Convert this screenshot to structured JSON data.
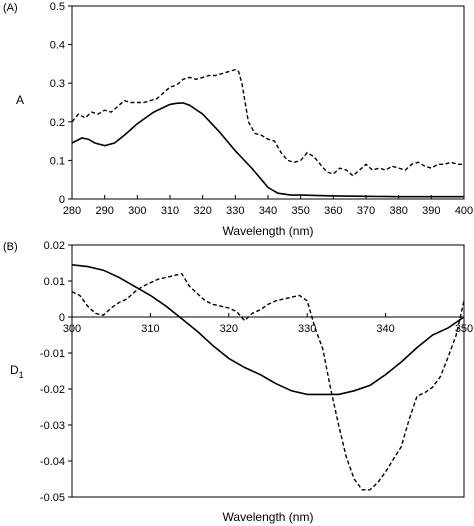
{
  "chart_data": [
    {
      "type": "line",
      "panel_label": "(A)",
      "xlabel": "Wavelength (nm)",
      "ylabel": "A",
      "xlim": [
        280,
        400
      ],
      "ylim": [
        0,
        0.5
      ],
      "xticks": [
        280,
        290,
        300,
        310,
        320,
        330,
        340,
        350,
        360,
        370,
        380,
        390,
        400
      ],
      "yticks": [
        0,
        0.1,
        0.2,
        0.3,
        0.4,
        0.5
      ],
      "ytick_labels": [
        "0",
        "0.1",
        "0.2",
        "0.3",
        "0.4",
        "0.5"
      ],
      "grid": false,
      "series": [
        {
          "style": "solid",
          "x": [
            280,
            283,
            285,
            287,
            290,
            293,
            296,
            300,
            305,
            310,
            312,
            314,
            316,
            320,
            325,
            330,
            335,
            338,
            340,
            343,
            347,
            350,
            360,
            370,
            380,
            390,
            400
          ],
          "y": [
            0.145,
            0.158,
            0.155,
            0.145,
            0.138,
            0.145,
            0.165,
            0.195,
            0.225,
            0.245,
            0.248,
            0.249,
            0.243,
            0.22,
            0.175,
            0.125,
            0.08,
            0.05,
            0.03,
            0.015,
            0.01,
            0.01,
            0.008,
            0.007,
            0.006,
            0.006,
            0.006
          ]
        },
        {
          "style": "dashed",
          "x": [
            280,
            282,
            284,
            286,
            288,
            290,
            292,
            294,
            296,
            298,
            300,
            302,
            304,
            306,
            308,
            310,
            312,
            314,
            316,
            318,
            320,
            322,
            324,
            326,
            328,
            330,
            331,
            332,
            334,
            336,
            338,
            340,
            342,
            344,
            346,
            348,
            350,
            352,
            354,
            356,
            358,
            360,
            362,
            364,
            366,
            368,
            370,
            372,
            374,
            376,
            378,
            380,
            382,
            384,
            386,
            388,
            390,
            392,
            394,
            396,
            398,
            400
          ],
          "y": [
            0.2,
            0.22,
            0.21,
            0.225,
            0.22,
            0.23,
            0.225,
            0.24,
            0.255,
            0.25,
            0.25,
            0.25,
            0.255,
            0.26,
            0.275,
            0.29,
            0.295,
            0.31,
            0.315,
            0.31,
            0.315,
            0.32,
            0.32,
            0.325,
            0.33,
            0.335,
            0.33,
            0.3,
            0.2,
            0.17,
            0.165,
            0.155,
            0.15,
            0.12,
            0.1,
            0.095,
            0.1,
            0.12,
            0.11,
            0.09,
            0.07,
            0.065,
            0.08,
            0.075,
            0.06,
            0.075,
            0.09,
            0.075,
            0.08,
            0.075,
            0.085,
            0.08,
            0.075,
            0.09,
            0.095,
            0.085,
            0.08,
            0.09,
            0.09,
            0.095,
            0.09,
            0.09
          ]
        }
      ]
    },
    {
      "type": "line",
      "panel_label": "(B)",
      "xlabel": "Wavelength (nm)",
      "ylabel_main": "D",
      "ylabel_sub": "1",
      "xlim": [
        300,
        350
      ],
      "ylim": [
        -0.05,
        0.02
      ],
      "xticks": [
        300,
        310,
        320,
        330,
        340,
        350
      ],
      "xtick_labels": [
        "300",
        "310",
        "320",
        "330",
        "340",
        "350"
      ],
      "yticks": [
        -0.05,
        -0.04,
        -0.03,
        -0.02,
        -0.01,
        0,
        0.01,
        0.02
      ],
      "ytick_labels": [
        "-0.05",
        "-0.04",
        "-0.03",
        "-0.02",
        "-0.01",
        "0",
        "0.01",
        "0.02"
      ],
      "grid": false,
      "series": [
        {
          "style": "solid",
          "x": [
            300,
            302,
            304,
            306,
            308,
            310,
            312,
            314,
            316,
            318,
            320,
            322,
            324,
            326,
            328,
            330,
            332,
            334,
            336,
            338,
            340,
            342,
            344,
            346,
            348,
            350
          ],
          "y": [
            0.0145,
            0.014,
            0.013,
            0.011,
            0.0085,
            0.006,
            0.003,
            -0.0005,
            -0.004,
            -0.008,
            -0.0115,
            -0.014,
            -0.016,
            -0.0185,
            -0.0205,
            -0.0215,
            -0.0215,
            -0.0215,
            -0.0205,
            -0.019,
            -0.016,
            -0.0125,
            -0.0085,
            -0.005,
            -0.003,
            0.0
          ]
        },
        {
          "style": "dashed",
          "x": [
            300,
            301,
            302,
            303,
            304,
            305,
            306,
            307,
            308,
            309,
            310,
            311,
            312,
            313,
            314,
            315,
            316,
            317,
            318,
            319,
            320,
            321,
            322,
            323,
            324,
            325,
            326,
            327,
            328,
            329,
            330,
            331,
            332,
            333,
            334,
            335,
            336,
            337,
            338,
            339,
            340,
            341,
            342,
            343,
            344,
            345,
            346,
            347,
            348,
            349,
            350
          ],
          "y": [
            0.007,
            0.006,
            0.003,
            0.001,
            0.0005,
            0.0025,
            0.004,
            0.005,
            0.007,
            0.0085,
            0.0095,
            0.0105,
            0.011,
            0.0115,
            0.012,
            0.0085,
            0.0065,
            0.0045,
            0.0035,
            0.003,
            0.0025,
            0.0015,
            -0.001,
            0.001,
            0.002,
            0.0035,
            0.0045,
            0.005,
            0.0055,
            0.006,
            0.0045,
            -0.003,
            -0.009,
            -0.02,
            -0.03,
            -0.039,
            -0.045,
            -0.048,
            -0.048,
            -0.046,
            -0.043,
            -0.0395,
            -0.036,
            -0.0285,
            -0.022,
            -0.021,
            -0.0195,
            -0.0165,
            -0.011,
            -0.005,
            0.0045
          ]
        }
      ]
    }
  ]
}
